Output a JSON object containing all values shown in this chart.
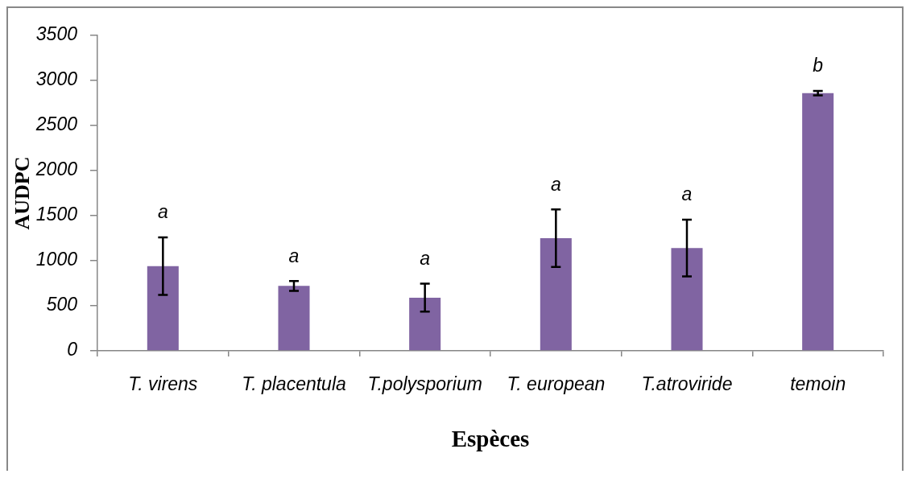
{
  "chart_data": {
    "type": "bar",
    "xlabel": "Espèces",
    "ylabel": "AUDPC",
    "categories": [
      "T. virens",
      "T. placentula",
      "T.polysporium",
      "T. european",
      "T.atroviride",
      "temoin"
    ],
    "values": [
      940,
      720,
      590,
      1250,
      1140,
      2860
    ],
    "errors": [
      320,
      55,
      155,
      320,
      315,
      25
    ],
    "color": "#8064a2",
    "ylim": [
      0,
      3500
    ],
    "yticks": [
      0,
      500,
      1000,
      1500,
      2000,
      2500,
      3000,
      3500
    ],
    "annotations": [
      "a",
      "a",
      "a",
      "a",
      "a",
      "b"
    ]
  }
}
